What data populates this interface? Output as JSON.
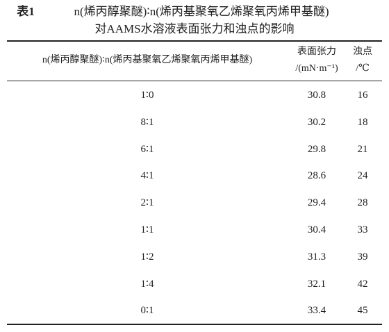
{
  "table": {
    "caption": {
      "label": "表1",
      "line1": "n(烯丙醇聚醚)∶n(烯丙基聚氧乙烯聚氧丙烯甲基醚)",
      "line2": "对AAMS水溶液表面张力和浊点的影响"
    },
    "header": [
      [
        "n(烯丙醇聚醚)∶n(烯丙基聚氧乙烯聚氧丙烯甲基醚)"
      ],
      [
        "表面张力",
        "/(mN·m⁻¹)"
      ],
      [
        "浊点",
        "/℃"
      ]
    ],
    "rows": [
      [
        "1∶0",
        30.8,
        16
      ],
      [
        "8∶1",
        30.2,
        18
      ],
      [
        "6∶1",
        29.8,
        21
      ],
      [
        "4∶1",
        28.6,
        24
      ],
      [
        "2∶1",
        29.4,
        28
      ],
      [
        "1∶1",
        30.4,
        33
      ],
      [
        "1∶2",
        31.3,
        39
      ],
      [
        "1∶4",
        32.1,
        42
      ],
      [
        "0∶1",
        33.4,
        45
      ]
    ]
  }
}
